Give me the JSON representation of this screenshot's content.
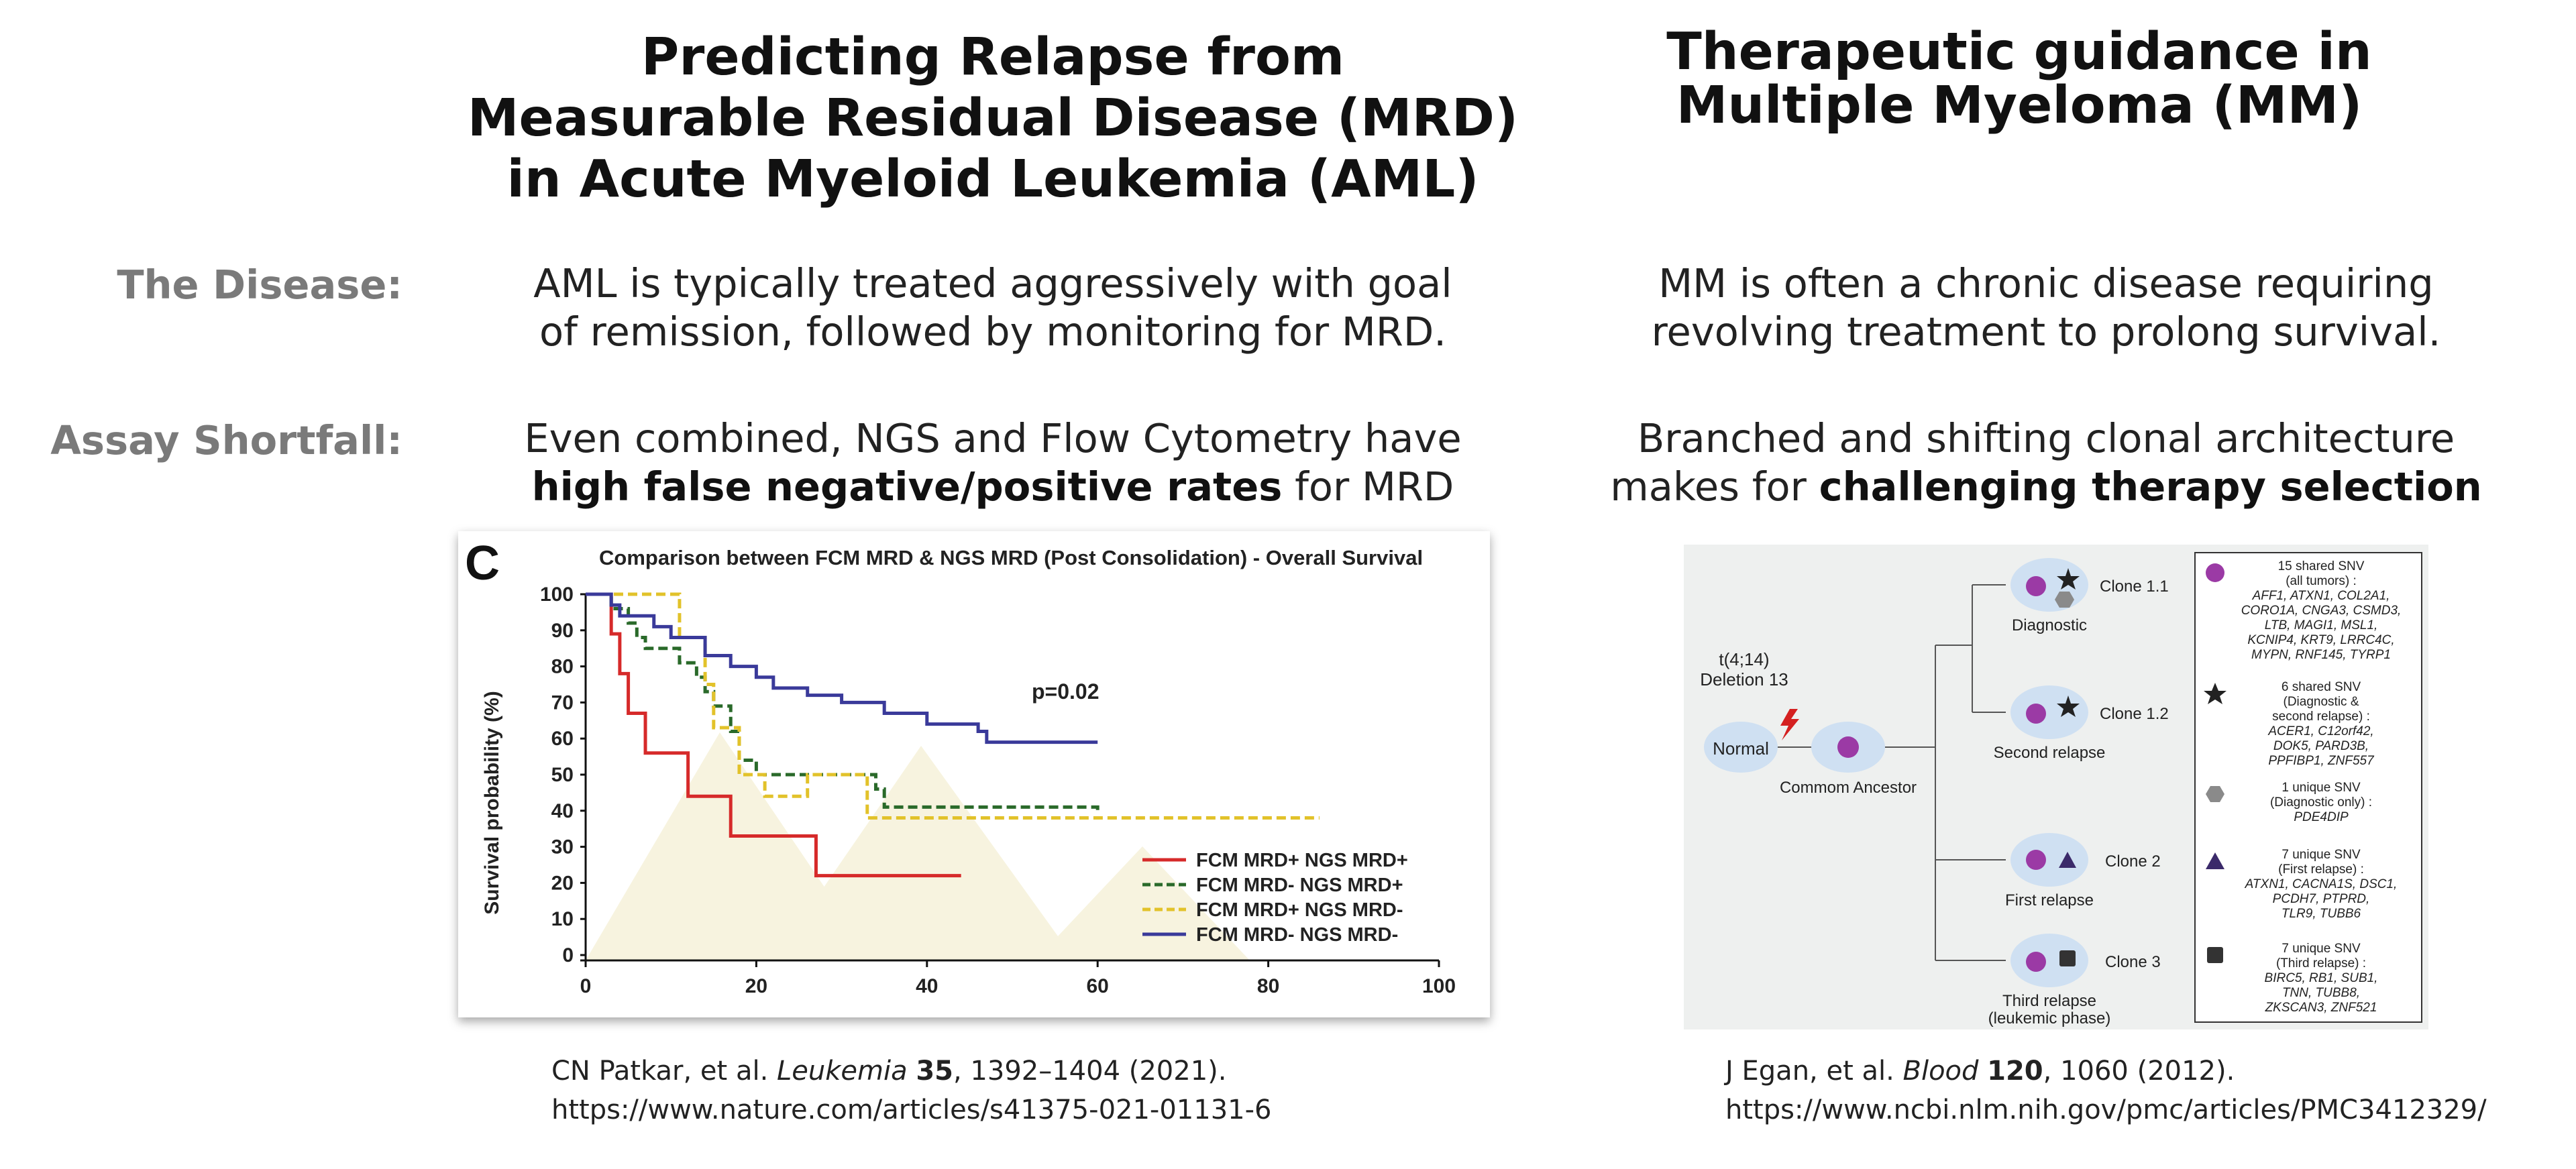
{
  "left_title": [
    "Predicting Relapse from",
    "Measurable Residual Disease (MRD)",
    "in Acute Myeloid Leukemia (AML)"
  ],
  "right_title": [
    "Therapeutic guidance in",
    "Multiple Myeloma (MM)"
  ],
  "row_labels": {
    "disease": "The Disease:",
    "shortfall": "Assay Shortfall:"
  },
  "left_disease": [
    "AML is typically treated aggressively with goal",
    "of remission, followed by monitoring for MRD."
  ],
  "right_disease": [
    "MM is often a chronic disease requiring",
    "revolving treatment to prolong survival."
  ],
  "left_shortfall": {
    "line1": "Even combined, NGS and Flow Cytometry have",
    "bold": "high false negative/positive rates",
    "rest": " for MRD"
  },
  "right_shortfall": {
    "line1": "Branched and shifting clonal architecture",
    "pre": "makes for ",
    "bold": "challenging therapy selection"
  },
  "chart": {
    "panel_letter": "C",
    "title": "Comparison between FCM MRD & NGS MRD (Post Consolidation) - Overall Survival",
    "ylabel": "Survival probability (%)",
    "pvalue": "p=0.02",
    "xticks": [
      "0",
      "20",
      "40",
      "60",
      "80",
      "100"
    ],
    "yticks": [
      "0",
      "10",
      "20",
      "30",
      "40",
      "50",
      "60",
      "70",
      "80",
      "90",
      "100"
    ]
  },
  "chart_data": {
    "type": "line",
    "title": "Comparison between FCM MRD & NGS MRD (Post Consolidation) - Overall Survival",
    "xlabel": "",
    "ylabel": "Survival probability (%)",
    "xlim": [
      0,
      100
    ],
    "ylim": [
      0,
      100
    ],
    "annotation": "p=0.02",
    "legend_position": "bottom-right",
    "series": [
      {
        "name": "FCM MRD+ NGS MRD+",
        "color": "#d62a2a",
        "dash": "solid",
        "points": [
          [
            0,
            100
          ],
          [
            3,
            100
          ],
          [
            3,
            89
          ],
          [
            4,
            89
          ],
          [
            4,
            78
          ],
          [
            5,
            78
          ],
          [
            5,
            67
          ],
          [
            7,
            67
          ],
          [
            7,
            56
          ],
          [
            12,
            56
          ],
          [
            12,
            44
          ],
          [
            17,
            44
          ],
          [
            17,
            33
          ],
          [
            27,
            33
          ],
          [
            27,
            22
          ],
          [
            44,
            22
          ]
        ]
      },
      {
        "name": "FCM MRD- NGS MRD+",
        "color": "#2a6a2a",
        "dash": "dash",
        "points": [
          [
            0,
            100
          ],
          [
            3,
            100
          ],
          [
            3,
            96
          ],
          [
            5,
            96
          ],
          [
            5,
            92
          ],
          [
            6,
            92
          ],
          [
            6,
            88
          ],
          [
            7,
            88
          ],
          [
            7,
            85
          ],
          [
            11,
            85
          ],
          [
            11,
            81
          ],
          [
            13,
            81
          ],
          [
            13,
            77
          ],
          [
            14,
            77
          ],
          [
            14,
            73
          ],
          [
            15,
            73
          ],
          [
            15,
            69
          ],
          [
            17,
            69
          ],
          [
            17,
            62
          ],
          [
            18,
            62
          ],
          [
            18,
            54
          ],
          [
            20,
            54
          ],
          [
            20,
            50
          ],
          [
            34,
            50
          ],
          [
            34,
            46
          ],
          [
            35,
            46
          ],
          [
            35,
            41
          ],
          [
            60,
            41
          ],
          [
            60,
            39
          ],
          [
            60,
            39
          ]
        ]
      },
      {
        "name": "FCM MRD+ NGS MRD-",
        "color": "#e2c22a",
        "dash": "dash",
        "points": [
          [
            0,
            100
          ],
          [
            11,
            100
          ],
          [
            11,
            88
          ],
          [
            14,
            88
          ],
          [
            14,
            75
          ],
          [
            15,
            75
          ],
          [
            15,
            63
          ],
          [
            18,
            63
          ],
          [
            18,
            50
          ],
          [
            21,
            50
          ],
          [
            21,
            44
          ],
          [
            26,
            44
          ],
          [
            26,
            50
          ],
          [
            33,
            50
          ],
          [
            33,
            38
          ],
          [
            86,
            38
          ]
        ]
      },
      {
        "name": "FCM MRD- NGS MRD-",
        "color": "#3a3a9a",
        "dash": "solid",
        "points": [
          [
            0,
            100
          ],
          [
            3,
            100
          ],
          [
            3,
            97
          ],
          [
            4,
            97
          ],
          [
            4,
            94
          ],
          [
            8,
            94
          ],
          [
            8,
            91
          ],
          [
            10,
            91
          ],
          [
            10,
            88
          ],
          [
            14,
            88
          ],
          [
            14,
            83
          ],
          [
            17,
            83
          ],
          [
            17,
            80
          ],
          [
            20,
            80
          ],
          [
            20,
            77
          ],
          [
            22,
            77
          ],
          [
            22,
            74
          ],
          [
            26,
            74
          ],
          [
            26,
            72
          ],
          [
            30,
            72
          ],
          [
            30,
            70
          ],
          [
            35,
            70
          ],
          [
            35,
            67
          ],
          [
            40,
            67
          ],
          [
            40,
            64
          ],
          [
            46,
            64
          ],
          [
            46,
            62
          ],
          [
            46,
            62
          ],
          [
            47,
            62
          ],
          [
            47,
            59
          ],
          [
            60,
            59
          ]
        ]
      }
    ]
  },
  "clone_diagram": {
    "normal": "Normal",
    "ancestor": "Commom Ancestor",
    "translocation": "t(4;14)",
    "deletion": "Deletion 13",
    "nodes": [
      {
        "label": "Diagnostic",
        "clone": "Clone 1.1"
      },
      {
        "label": "Second relapse",
        "clone": "Clone 1.2"
      },
      {
        "label": "First relapse",
        "clone": "Clone 2"
      },
      {
        "label": "Third relapse",
        "label2": "(leukemic phase)",
        "clone": "Clone 3"
      }
    ],
    "legend": [
      {
        "icon": "purple-circle-icon",
        "head": [
          "15 shared SNV",
          "(all tumors) :"
        ],
        "genes": [
          "AFF1, ATXN1, COL2A1,",
          "CORO1A, CNGA3, CSMD3,",
          "LTB, MAGI1, MSL1,",
          "KCNIP4, KRT9, LRRC4C,",
          "MYPN, RNF145, TYRP1"
        ]
      },
      {
        "icon": "star-icon",
        "head": [
          "6 shared SNV",
          "(Diagnostic &",
          "second relapse) :"
        ],
        "genes": [
          "ACER1, C12orf42,",
          "DOK5, PARD3B,",
          "PPFIBP1, ZNF557"
        ]
      },
      {
        "icon": "hexagon-icon",
        "head": [
          "1 unique SNV",
          "(Diagnostic only) :"
        ],
        "genes": [
          "PDE4DIP"
        ]
      },
      {
        "icon": "triangle-icon",
        "head": [
          "7 unique SNV",
          "(First relapse) :"
        ],
        "genes": [
          "ATXN1, CACNA1S, DSC1,",
          "PCDH7, PTPRD,",
          "TLR9, TUBB6"
        ]
      },
      {
        "icon": "square-icon",
        "head": [
          "7 unique SNV",
          "(Third relapse) :"
        ],
        "genes": [
          "BIRC5, RB1, SUB1,",
          "TNN, TUBB8,",
          "ZKSCAN3, ZNF521"
        ]
      }
    ]
  },
  "left_citation": {
    "authors": "CN Patkar, et al. ",
    "journal": "Leukemia",
    "volume": "35",
    "pages": ", 1392–1404 (2021).",
    "url": "https://www.nature.com/articles/s41375-021-01131-6"
  },
  "right_citation": {
    "authors": "J Egan, et al. ",
    "journal": "Blood",
    "volume": "120",
    "pages": ", 1060 (2012).",
    "url": "https://www.ncbi.nlm.nih.gov/pmc/articles/PMC3412329/"
  }
}
